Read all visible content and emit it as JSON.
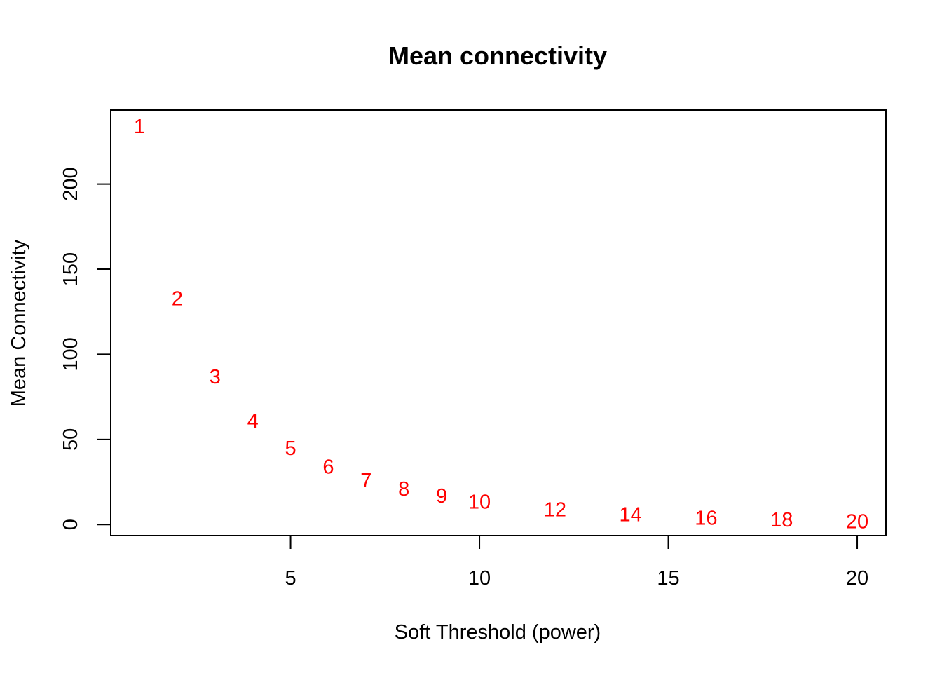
{
  "chart_data": {
    "type": "scatter",
    "title": "Mean connectivity",
    "xlabel": "Soft Threshold (power)",
    "ylabel": "Mean Connectivity",
    "xlim": [
      0.24,
      20.76
    ],
    "ylim": [
      -6.5,
      243.5
    ],
    "x_ticks": [
      5,
      10,
      15,
      20
    ],
    "y_ticks": [
      0,
      50,
      100,
      150,
      200
    ],
    "grid": false,
    "legend": "none",
    "point_color": "#ff0000",
    "points": [
      {
        "x": 1,
        "y": 234,
        "label": "1"
      },
      {
        "x": 2,
        "y": 133,
        "label": "2"
      },
      {
        "x": 3,
        "y": 87,
        "label": "3"
      },
      {
        "x": 4,
        "y": 61,
        "label": "4"
      },
      {
        "x": 5,
        "y": 45,
        "label": "5"
      },
      {
        "x": 6,
        "y": 34,
        "label": "6"
      },
      {
        "x": 7,
        "y": 26,
        "label": "7"
      },
      {
        "x": 8,
        "y": 21,
        "label": "8"
      },
      {
        "x": 9,
        "y": 17,
        "label": "9"
      },
      {
        "x": 10,
        "y": 13.5,
        "label": "10"
      },
      {
        "x": 12,
        "y": 9,
        "label": "12"
      },
      {
        "x": 14,
        "y": 6,
        "label": "14"
      },
      {
        "x": 16,
        "y": 4,
        "label": "16"
      },
      {
        "x": 18,
        "y": 3,
        "label": "18"
      },
      {
        "x": 20,
        "y": 2,
        "label": "20"
      }
    ]
  }
}
